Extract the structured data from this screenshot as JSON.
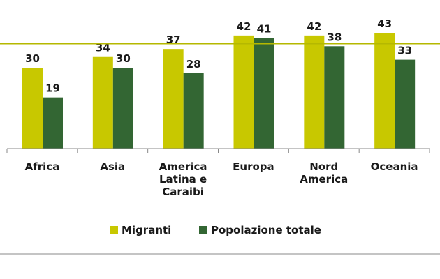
{
  "chart_data": {
    "type": "bar",
    "categories": [
      [
        "Africa"
      ],
      [
        "Asia"
      ],
      [
        "America",
        "Latina e",
        "Caraibi"
      ],
      [
        "Europa"
      ],
      [
        "Nord",
        "America"
      ],
      [
        "Oceania"
      ]
    ],
    "series": [
      {
        "name": "Migranti",
        "color": "#c8c800",
        "values": [
          30,
          34,
          37,
          42,
          42,
          43
        ]
      },
      {
        "name": "Popolazione totale",
        "color": "#336633",
        "values": [
          19,
          30,
          28,
          41,
          38,
          33
        ]
      }
    ],
    "reference_line": {
      "value": 39,
      "color": "#b5b800"
    },
    "ylim": [
      0,
      52
    ],
    "grid": false,
    "legend_position": "bottom"
  }
}
